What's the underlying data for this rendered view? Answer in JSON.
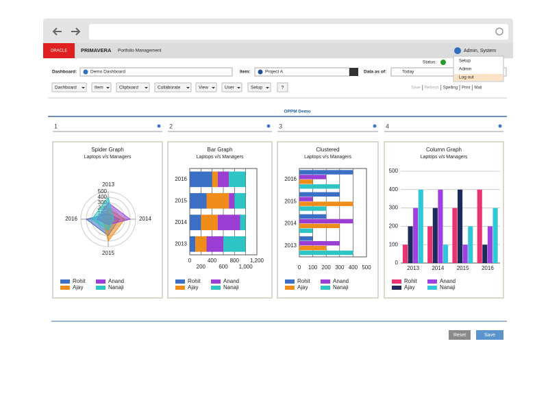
{
  "header": {
    "brand": "ORACLE",
    "product": "PRIMAVERA",
    "module": "Portfolio Management",
    "user": "Admin, System",
    "status_label": "Status:"
  },
  "user_menu": [
    "Setup",
    "Admin",
    "Log out"
  ],
  "filters": {
    "dashboard_label": "Dashboard:",
    "dashboard": "Demo Dashboard",
    "item_label": "Item:",
    "item": "Project A",
    "date_label": "Data as of:",
    "date": "Today"
  },
  "toolbar": [
    "Dashboard",
    "Item",
    "Clipboard",
    "Collaborate",
    "View",
    "User",
    "Setup"
  ],
  "help": "?",
  "actions": [
    "Save",
    "Refresh",
    "Spelling",
    "Print",
    "Mail"
  ],
  "page_title": "OPPM Demo",
  "panels": [
    "1",
    "2",
    "3",
    "4"
  ],
  "chart_data": [
    {
      "type": "radar",
      "title": "Spider Graph",
      "subtitle": "Laptops v/s Managers",
      "categories": [
        "2013",
        "2014",
        "2015",
        "2016"
      ],
      "series": [
        {
          "name": "Rohit",
          "color": "#3a6fc4",
          "values": [
            100,
            200,
            300,
            400
          ]
        },
        {
          "name": "Ajay",
          "color": "#f08c1a",
          "values": [
            200,
            300,
            400,
            100
          ]
        },
        {
          "name": "Anand",
          "color": "#9b3fd4",
          "values": [
            300,
            400,
            100,
            200
          ]
        },
        {
          "name": "Nanaji",
          "color": "#2ec4c4",
          "values": [
            400,
            100,
            200,
            300
          ]
        }
      ],
      "ylim": [
        0,
        500
      ],
      "yticks": [
        100,
        200,
        300,
        400,
        500
      ],
      "grid": true
    },
    {
      "type": "bar",
      "orientation": "horizontal",
      "stacked": true,
      "title": "Bar Graph",
      "subtitle": "Laptops v/s Managers",
      "categories": [
        "2013",
        "2014",
        "2015",
        "2016"
      ],
      "series": [
        {
          "name": "Rohit",
          "color": "#3a6fc4",
          "values": [
            100,
            200,
            300,
            400
          ]
        },
        {
          "name": "Ajay",
          "color": "#f08c1a",
          "values": [
            200,
            300,
            400,
            100
          ]
        },
        {
          "name": "Anand",
          "color": "#9b3fd4",
          "values": [
            300,
            400,
            100,
            200
          ]
        },
        {
          "name": "Nanaji",
          "color": "#2ec4c4",
          "values": [
            400,
            100,
            200,
            300
          ]
        }
      ],
      "xlim": [
        0,
        1200
      ],
      "xticks": [
        0,
        200,
        400,
        600,
        800,
        {
          "value": 1000,
          "label": "1,000"
        },
        {
          "value": 1200,
          "label": "1,200"
        }
      ],
      "grid": true
    },
    {
      "type": "bar",
      "orientation": "horizontal",
      "stacked": false,
      "title": "Clustered",
      "subtitle": "Laptops v/s Managers",
      "categories": [
        "2013",
        "2014",
        "2015",
        "2016"
      ],
      "series": [
        {
          "name": "Rohit",
          "color": "#3a6fc4",
          "values": [
            100,
            200,
            300,
            400
          ]
        },
        {
          "name": "Ajay",
          "color": "#f08c1a",
          "values": [
            200,
            300,
            400,
            100
          ]
        },
        {
          "name": "Anand",
          "color": "#9b3fd4",
          "values": [
            300,
            400,
            100,
            200
          ]
        },
        {
          "name": "Nanaji",
          "color": "#2ec4c4",
          "values": [
            400,
            100,
            200,
            300
          ]
        }
      ],
      "xlim": [
        0,
        500
      ],
      "xticks": [
        0,
        100,
        200,
        300,
        400,
        500
      ],
      "grid": true
    },
    {
      "type": "bar",
      "orientation": "vertical",
      "stacked": false,
      "title": "Column Graph",
      "subtitle": "Laptops v/s Managers",
      "categories": [
        "2013",
        "2014",
        "2015",
        "2016"
      ],
      "series": [
        {
          "name": "Rohit",
          "color": "#e8336e",
          "values": [
            100,
            200,
            300,
            400
          ]
        },
        {
          "name": "Ajay",
          "color": "#1f2a5c",
          "values": [
            200,
            300,
            400,
            100
          ]
        },
        {
          "name": "Anand",
          "color": "#a040e0",
          "values": [
            300,
            400,
            100,
            200
          ]
        },
        {
          "name": "Nanaji",
          "color": "#30c8d8",
          "values": [
            400,
            100,
            200,
            300
          ]
        }
      ],
      "ylim": [
        0,
        500
      ],
      "yticks": [
        0,
        100,
        200,
        300,
        400,
        500
      ],
      "grid": true
    }
  ],
  "buttons": [
    "Reset",
    "Save"
  ]
}
